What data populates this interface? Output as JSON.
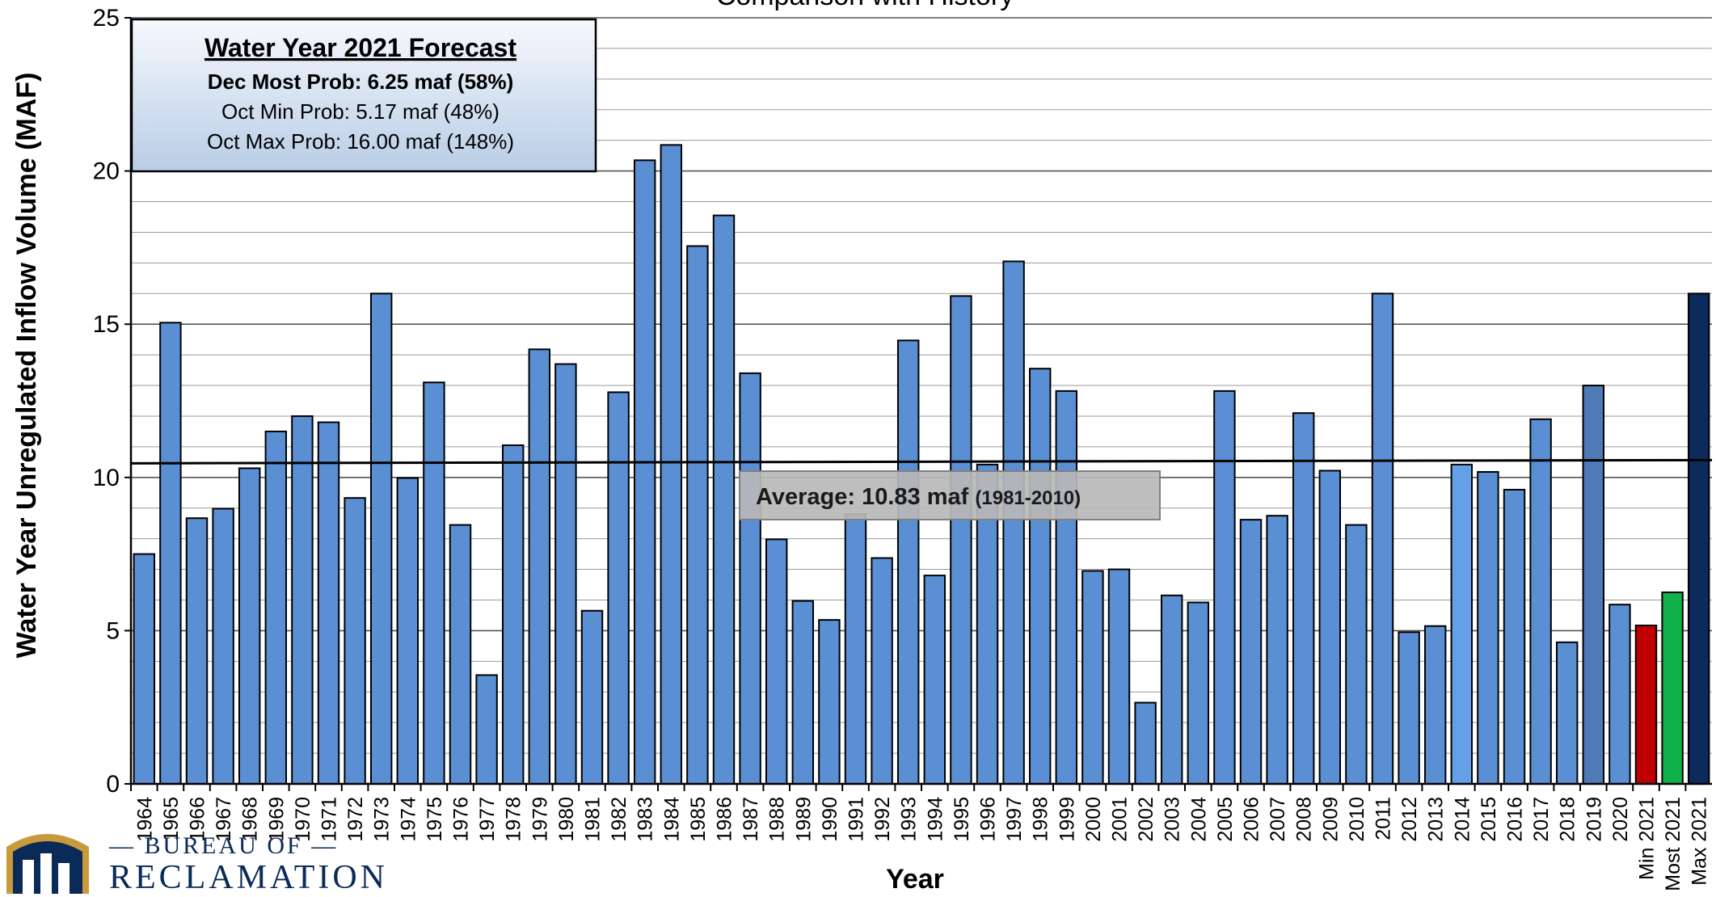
{
  "chart_data": {
    "type": "bar",
    "title": "Comparison with History",
    "xlabel": "Year",
    "ylabel": "Water Year Unregulated Inflow Volume (MAF)",
    "ylim": [
      0,
      25
    ],
    "yticks": [
      0,
      5,
      10,
      15,
      20,
      25
    ],
    "grid": true,
    "categories": [
      "1964",
      "1965",
      "1966",
      "1967",
      "1968",
      "1969",
      "1970",
      "1971",
      "1972",
      "1973",
      "1974",
      "1975",
      "1976",
      "1977",
      "1978",
      "1979",
      "1980",
      "1981",
      "1982",
      "1983",
      "1984",
      "1985",
      "1986",
      "1987",
      "1988",
      "1989",
      "1990",
      "1991",
      "1992",
      "1993",
      "1994",
      "1995",
      "1996",
      "1997",
      "1998",
      "1999",
      "2000",
      "2001",
      "2002",
      "2003",
      "2004",
      "2005",
      "2006",
      "2007",
      "2008",
      "2009",
      "2010",
      "2011",
      "2012",
      "2013",
      "2014",
      "2015",
      "2016",
      "2017",
      "2018",
      "2019",
      "2020",
      "Min 2021",
      "Most 2021",
      "Max 2021"
    ],
    "values": [
      7.5,
      15.05,
      8.67,
      8.98,
      10.3,
      11.5,
      12.0,
      11.8,
      9.33,
      16.0,
      9.98,
      13.1,
      8.45,
      3.55,
      11.05,
      14.18,
      13.7,
      5.65,
      12.78,
      20.35,
      20.85,
      17.55,
      18.55,
      13.4,
      7.98,
      5.97,
      5.35,
      8.8,
      7.37,
      14.47,
      6.8,
      15.92,
      10.42,
      17.05,
      13.55,
      12.82,
      6.95,
      7.0,
      2.65,
      6.15,
      5.92,
      12.82,
      8.62,
      8.75,
      12.1,
      10.22,
      8.45,
      16.0,
      4.95,
      5.15,
      10.42,
      10.18,
      9.6,
      11.9,
      4.62,
      13.0,
      5.85,
      5.17,
      6.25,
      16.0
    ],
    "bar_colors": {
      "default": "#5b8fd4",
      "2014": "#63a0e8",
      "2019": "#4f7ab8",
      "Min 2021": "#c00000",
      "Most 2021": "#10b04a",
      "Max 2021": "#0d2a5c"
    },
    "average": {
      "value": 10.83,
      "label_prefix": "Average:",
      "label_value": "10.83 maf",
      "label_period": "(1981-2010)"
    },
    "forecast_box": {
      "title": "Water Year 2021 Forecast",
      "lines": [
        {
          "text": "Dec Most Prob:  6.25 maf (58%)",
          "bold": true
        },
        {
          "text": "Oct Min Prob:  5.17 maf (48%)",
          "bold": false
        },
        {
          "text": "Oct Max Prob:  16.00 maf (148%)",
          "bold": false
        }
      ]
    }
  },
  "logo": {
    "line1": "— BUREAU OF —",
    "line2": "RECLAMATION",
    "colors": {
      "navy": "#0a2a57",
      "gold": "#c89a3c"
    }
  }
}
